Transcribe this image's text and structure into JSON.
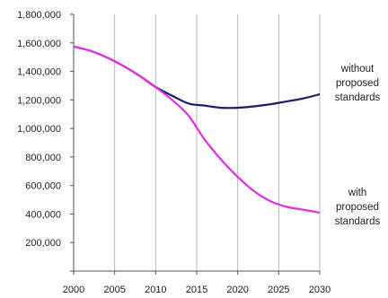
{
  "chart_data": {
    "type": "line",
    "title": "",
    "xlabel": "",
    "ylabel": "",
    "xlim": [
      2000,
      2030
    ],
    "ylim": [
      0,
      1800000
    ],
    "grid": {
      "vertical": true,
      "horizontal": false
    },
    "x_ticks": [
      "2000",
      "2005",
      "2010",
      "2015",
      "2020",
      "2025",
      "2030"
    ],
    "y_ticks": [
      "",
      "200,000",
      "400,000",
      "600,000",
      "800,000",
      "1,000,000",
      "1,200,000",
      "1,400,000",
      "1,600,000",
      "1,800,000"
    ],
    "x": [
      2000,
      2002,
      2004,
      2006,
      2008,
      2010,
      2012,
      2014,
      2016,
      2018,
      2020,
      2022,
      2024,
      2026,
      2028,
      2030
    ],
    "series": [
      {
        "name": "without proposed standards",
        "label_lines": [
          "without",
          "proposed",
          "standards"
        ],
        "color": "#1c1c6e",
        "values": [
          1575000,
          1545000,
          1500000,
          1440000,
          1370000,
          1290000,
          1230000,
          1175000,
          1160000,
          1145000,
          1145000,
          1155000,
          1170000,
          1190000,
          1210000,
          1240000
        ]
      },
      {
        "name": "with proposed standards",
        "label_lines": [
          "with",
          "proposed",
          "standards"
        ],
        "color": "#e02de0",
        "values": [
          1575000,
          1545000,
          1500000,
          1440000,
          1370000,
          1290000,
          1200000,
          1090000,
          920000,
          780000,
          660000,
          560000,
          490000,
          450000,
          430000,
          410000
        ]
      }
    ]
  }
}
